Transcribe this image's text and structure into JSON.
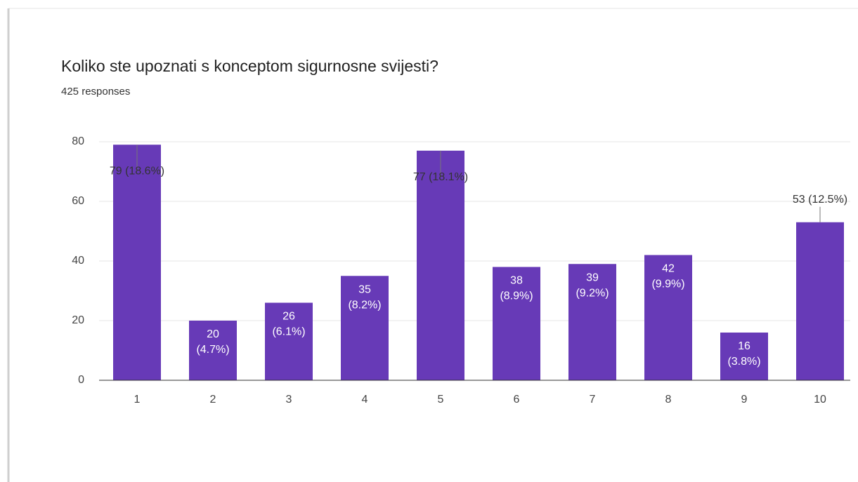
{
  "chart_data": {
    "type": "bar",
    "title": "Koliko ste upoznati s konceptom sigurnosne svijesti?",
    "subtitle": "425 responses",
    "categories": [
      "1",
      "2",
      "3",
      "4",
      "5",
      "6",
      "7",
      "8",
      "9",
      "10"
    ],
    "values": [
      79,
      20,
      26,
      35,
      77,
      38,
      39,
      42,
      16,
      53
    ],
    "value_labels": [
      "79 (18.6%)",
      "20 (4.7%)",
      "26 (6.1%)",
      "35 (8.2%)",
      "77 (18.1%)",
      "38 (8.9%)",
      "39 (9.2%)",
      "42 (9.9%)",
      "16 (3.8%)",
      "53 (12.5%)"
    ],
    "color": "#673ab7",
    "ylim": [
      0,
      80
    ],
    "yticks": [
      0,
      20,
      40,
      60,
      80
    ],
    "grid": true
  }
}
